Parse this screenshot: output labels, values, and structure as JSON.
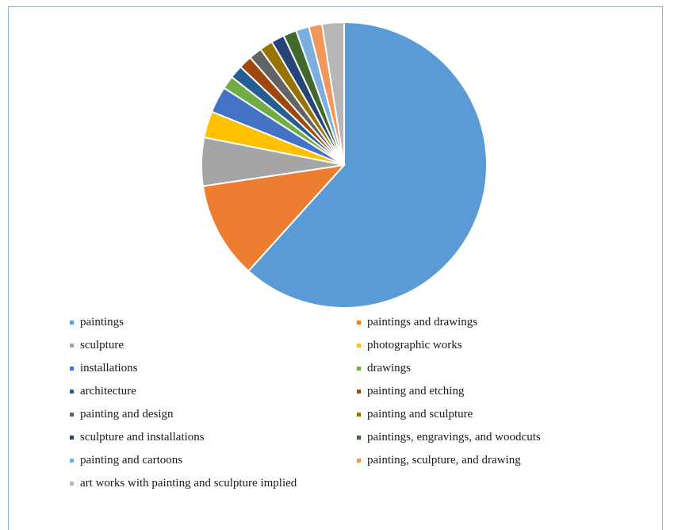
{
  "chart_data": {
    "type": "pie",
    "title": "",
    "legend_position": "bottom",
    "slices": [
      {
        "label": "paintings",
        "value": 62.0,
        "color": "#5b9bd5"
      },
      {
        "label": "paintings and drawings",
        "value": 11.0,
        "color": "#ed7d31"
      },
      {
        "label": "sculpture",
        "value": 5.5,
        "color": "#a5a5a5"
      },
      {
        "label": "photographic works",
        "value": 3.0,
        "color": "#ffc000"
      },
      {
        "label": "installations",
        "value": 3.0,
        "color": "#4472c4"
      },
      {
        "label": "drawings",
        "value": 1.5,
        "color": "#70ad47"
      },
      {
        "label": "architecture",
        "value": 1.5,
        "color": "#255e91"
      },
      {
        "label": "painting and etching",
        "value": 1.5,
        "color": "#9e480e"
      },
      {
        "label": "painting and design",
        "value": 1.5,
        "color": "#636363"
      },
      {
        "label": "painting and sculpture",
        "value": 1.5,
        "color": "#997300"
      },
      {
        "label": "sculpture and installations",
        "value": 1.5,
        "color": "#264478"
      },
      {
        "label": "paintings, engravings, and woodcuts",
        "value": 1.5,
        "color": "#43682b"
      },
      {
        "label": "painting and cartoons",
        "value": 1.5,
        "color": "#7cafdd"
      },
      {
        "label": "painting, sculpture, and drawing",
        "value": 1.5,
        "color": "#f1975a"
      },
      {
        "label": "art works with painting and sculpture implied",
        "value": 2.5,
        "color": "#b7b7b7"
      }
    ]
  }
}
